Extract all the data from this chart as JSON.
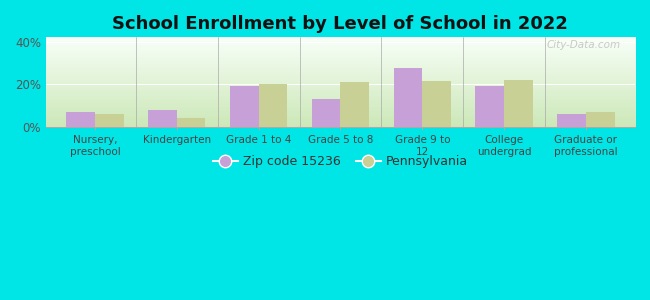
{
  "title": "School Enrollment by Level of School in 2022",
  "categories": [
    "Nursery,\npreschool",
    "Kindergarten",
    "Grade 1 to 4",
    "Grade 5 to 8",
    "Grade 9 to\n12",
    "College\nundergrad",
    "Graduate or\nprofessional"
  ],
  "zip_values": [
    7,
    8,
    19.5,
    13,
    27.5,
    19.5,
    6
  ],
  "pa_values": [
    6,
    4.5,
    20,
    21,
    21.5,
    22,
    7
  ],
  "zip_color": "#c8a0d8",
  "pa_color": "#c8d096",
  "background_color": "#00e5e5",
  "ylim": [
    0,
    42
  ],
  "yticks": [
    0,
    20,
    40
  ],
  "ytick_labels": [
    "0%",
    "20%",
    "40%"
  ],
  "legend_zip_label": "Zip code 15236",
  "legend_pa_label": "Pennsylvania",
  "bar_width": 0.35,
  "title_fontsize": 13,
  "watermark": "City-Data.com"
}
